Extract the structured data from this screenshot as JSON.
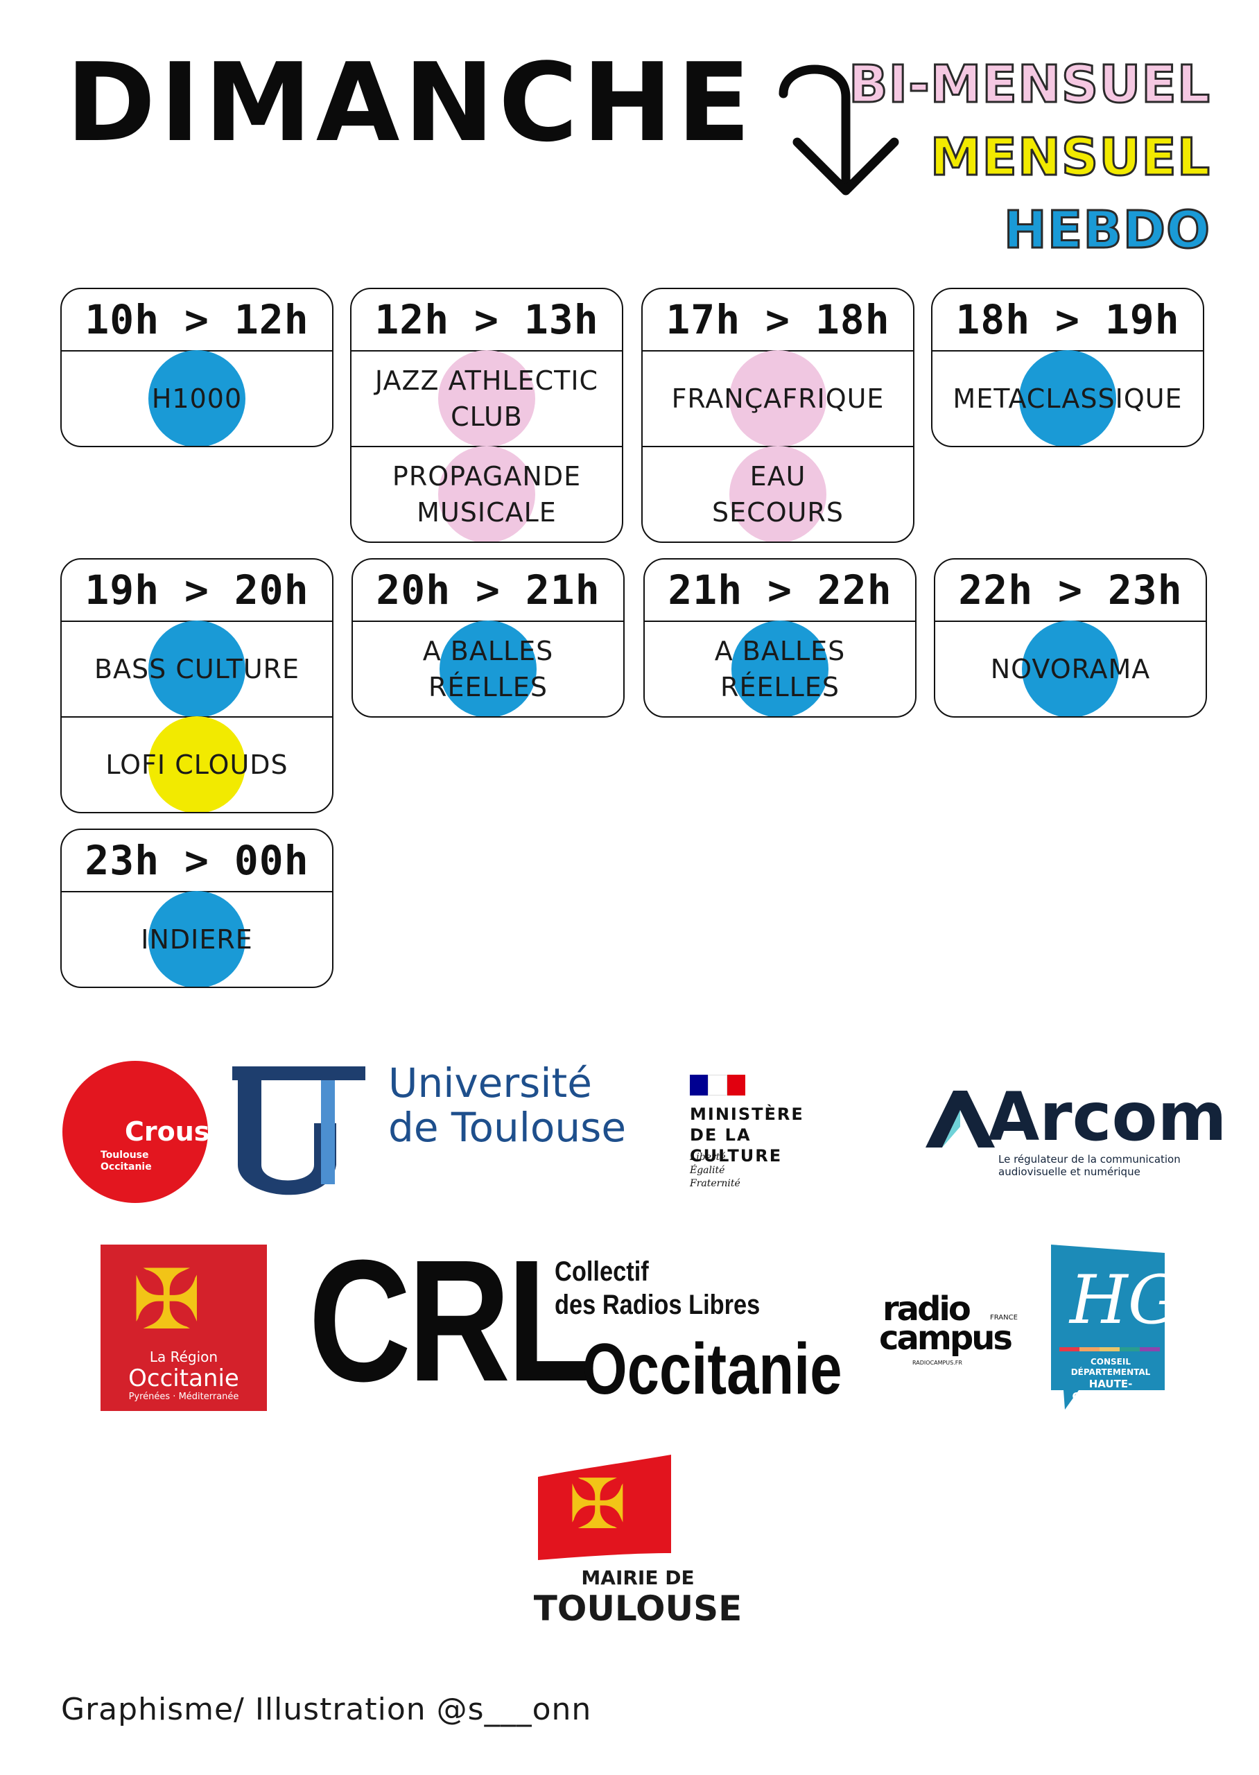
{
  "title": "DIMANCHE",
  "legend": [
    {
      "label": "BI-MENSUEL",
      "color": "#f5c8e2"
    },
    {
      "label": "MENSUEL",
      "color": "#f2ea00"
    },
    {
      "label": "HEBDO",
      "color": "#1a9ad6"
    }
  ],
  "slots": [
    {
      "time": "10h > 12h",
      "shows": [
        {
          "label": "H1000",
          "freq": "HEBDO",
          "color": "#1a9ad6"
        }
      ]
    },
    {
      "time": "12h > 13h",
      "shows": [
        {
          "label": "JAZZ ATHLECTIC CLUB",
          "freq": "BI-MENSUEL",
          "color": "#f0c7e1"
        },
        {
          "label": "PROPAGANDE MUSICALE",
          "freq": "BI-MENSUEL",
          "color": "#f0c7e1"
        }
      ]
    },
    {
      "time": "17h > 18h",
      "shows": [
        {
          "label": "FRANÇAFRIQUE",
          "freq": "BI-MENSUEL",
          "color": "#f0c7e1"
        },
        {
          "label": "EAU SECOURS",
          "freq": "BI-MENSUEL",
          "color": "#f0c7e1"
        }
      ]
    },
    {
      "time": "18h > 19h",
      "shows": [
        {
          "label": "METACLASSIQUE",
          "freq": "HEBDO",
          "color": "#1a9ad6"
        }
      ]
    },
    {
      "time": "19h > 20h",
      "shows": [
        {
          "label": "BASS CULTURE",
          "freq": "HEBDO",
          "color": "#1a9ad6"
        },
        {
          "label": "LOFI CLOUDS",
          "freq": "MENSUEL",
          "color": "#f2ea00"
        }
      ]
    },
    {
      "time": "20h > 21h",
      "shows": [
        {
          "label": "A BALLES RÉELLES",
          "freq": "HEBDO",
          "color": "#1a9ad6"
        }
      ]
    },
    {
      "time": "21h > 22h",
      "shows": [
        {
          "label": "A BALLES RÉELLES",
          "freq": "HEBDO",
          "color": "#1a9ad6"
        }
      ]
    },
    {
      "time": "22h > 23h",
      "shows": [
        {
          "label": "NOVORAMA",
          "freq": "HEBDO",
          "color": "#1a9ad6"
        }
      ]
    },
    {
      "time": "23h > 00h",
      "shows": [
        {
          "label": "INDIERE",
          "freq": "HEBDO",
          "color": "#1a9ad6"
        }
      ]
    }
  ],
  "logos": {
    "crous": {
      "name": "Crous",
      "sub1": "Toulouse",
      "sub2": "Occitanie"
    },
    "ut": {
      "line1": "Université",
      "line2": "de Toulouse"
    },
    "ministere": {
      "line1": "MINISTÈRE",
      "line2": "DE LA CULTURE",
      "m1": "Liberté",
      "m2": "Égalité",
      "m3": "Fraternité"
    },
    "arcom": {
      "name": "Arcom",
      "tag1": "Le régulateur de la communication",
      "tag2": "audiovisuelle et numérique"
    },
    "region": {
      "line1": "La Région",
      "line2": "Occitanie",
      "line3": "Pyrénées · Méditerranée"
    },
    "crl": {
      "abbr": "CRL",
      "line1": "Collectif",
      "line2": "des Radios Libres",
      "line3": "Occitanie"
    },
    "radiocampus": {
      "line1": "radio",
      "line2": "campus",
      "country": "FRANCE",
      "url": "RADIOCAMPUS.FR"
    },
    "hg": {
      "mono": "HG",
      "line1": "CONSEIL DÉPARTEMENTAL",
      "line2": "HAUTE-GARONNE.FR"
    },
    "mairie": {
      "line1": "MAIRIE DE",
      "line2": "TOULOUSE"
    }
  },
  "credit": "Graphisme/ Illustration @s___onn"
}
